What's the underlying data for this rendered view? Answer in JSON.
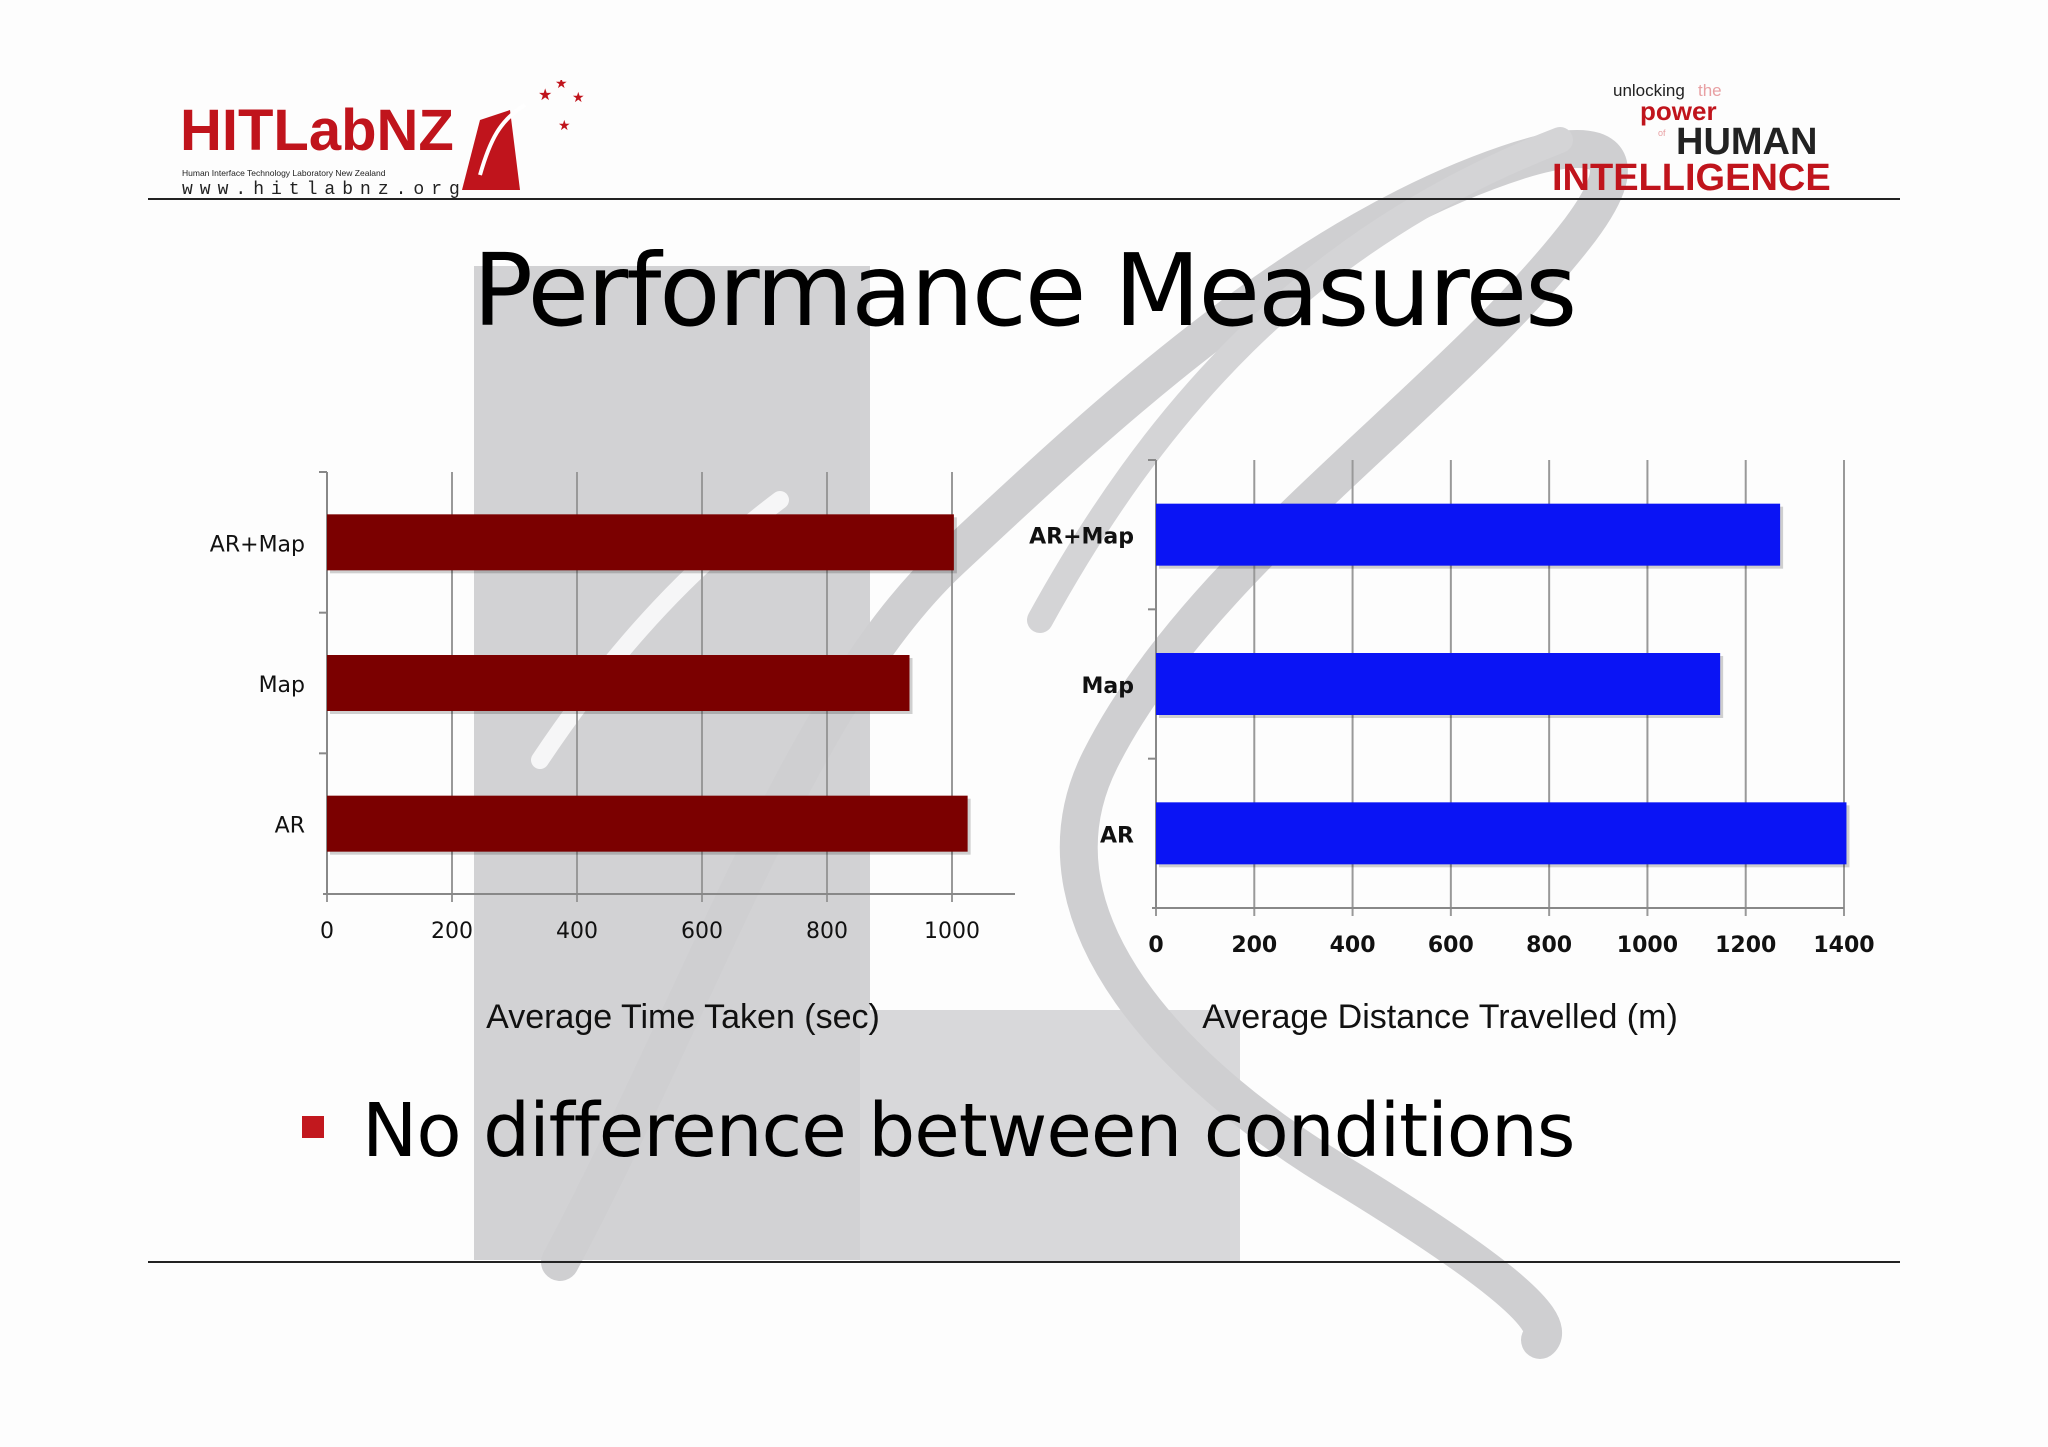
{
  "header": {
    "logo_left": {
      "brand": "HITLabNZ",
      "subtitle": "Human Interface Technology Laboratory New Zealand",
      "url": "www.hitlabnz.org"
    },
    "logo_right": {
      "line1_a": "unlocking",
      "line1_b": "the",
      "line2": "power",
      "line3_of": "of",
      "line3": "HUMAN",
      "line4": "INTELLIGENCE"
    }
  },
  "slide": {
    "title": "Performance Measures",
    "bullet": "No difference between conditions"
  },
  "colors": {
    "accent": "#c2181e",
    "time_bar": "#7b0000",
    "distance_bar": "#0a14f5",
    "grid": "#999999"
  },
  "chart_data": [
    {
      "type": "bar",
      "orientation": "horizontal",
      "categories": [
        "AR+Map",
        "Map",
        "AR"
      ],
      "values": [
        1003,
        932,
        1025
      ],
      "xlabel": "Average Time Taken (sec)",
      "xlim": [
        0,
        1100
      ],
      "ticks": [
        "0",
        "200",
        "400",
        "600",
        "800",
        "1000"
      ],
      "tick_values": [
        0,
        200,
        400,
        600,
        800,
        1000
      ],
      "grid": true
    },
    {
      "type": "bar",
      "orientation": "horizontal",
      "categories": [
        "AR+Map",
        "Map",
        "AR"
      ],
      "values": [
        1270,
        1148,
        1405
      ],
      "xlabel": "Average Distance Travelled (m)",
      "xlim": [
        0,
        1400
      ],
      "ticks": [
        "0",
        "200",
        "400",
        "600",
        "800",
        "1000",
        "1200",
        "1400"
      ],
      "tick_values": [
        0,
        200,
        400,
        600,
        800,
        1000,
        1200,
        1400
      ],
      "grid": true
    }
  ]
}
